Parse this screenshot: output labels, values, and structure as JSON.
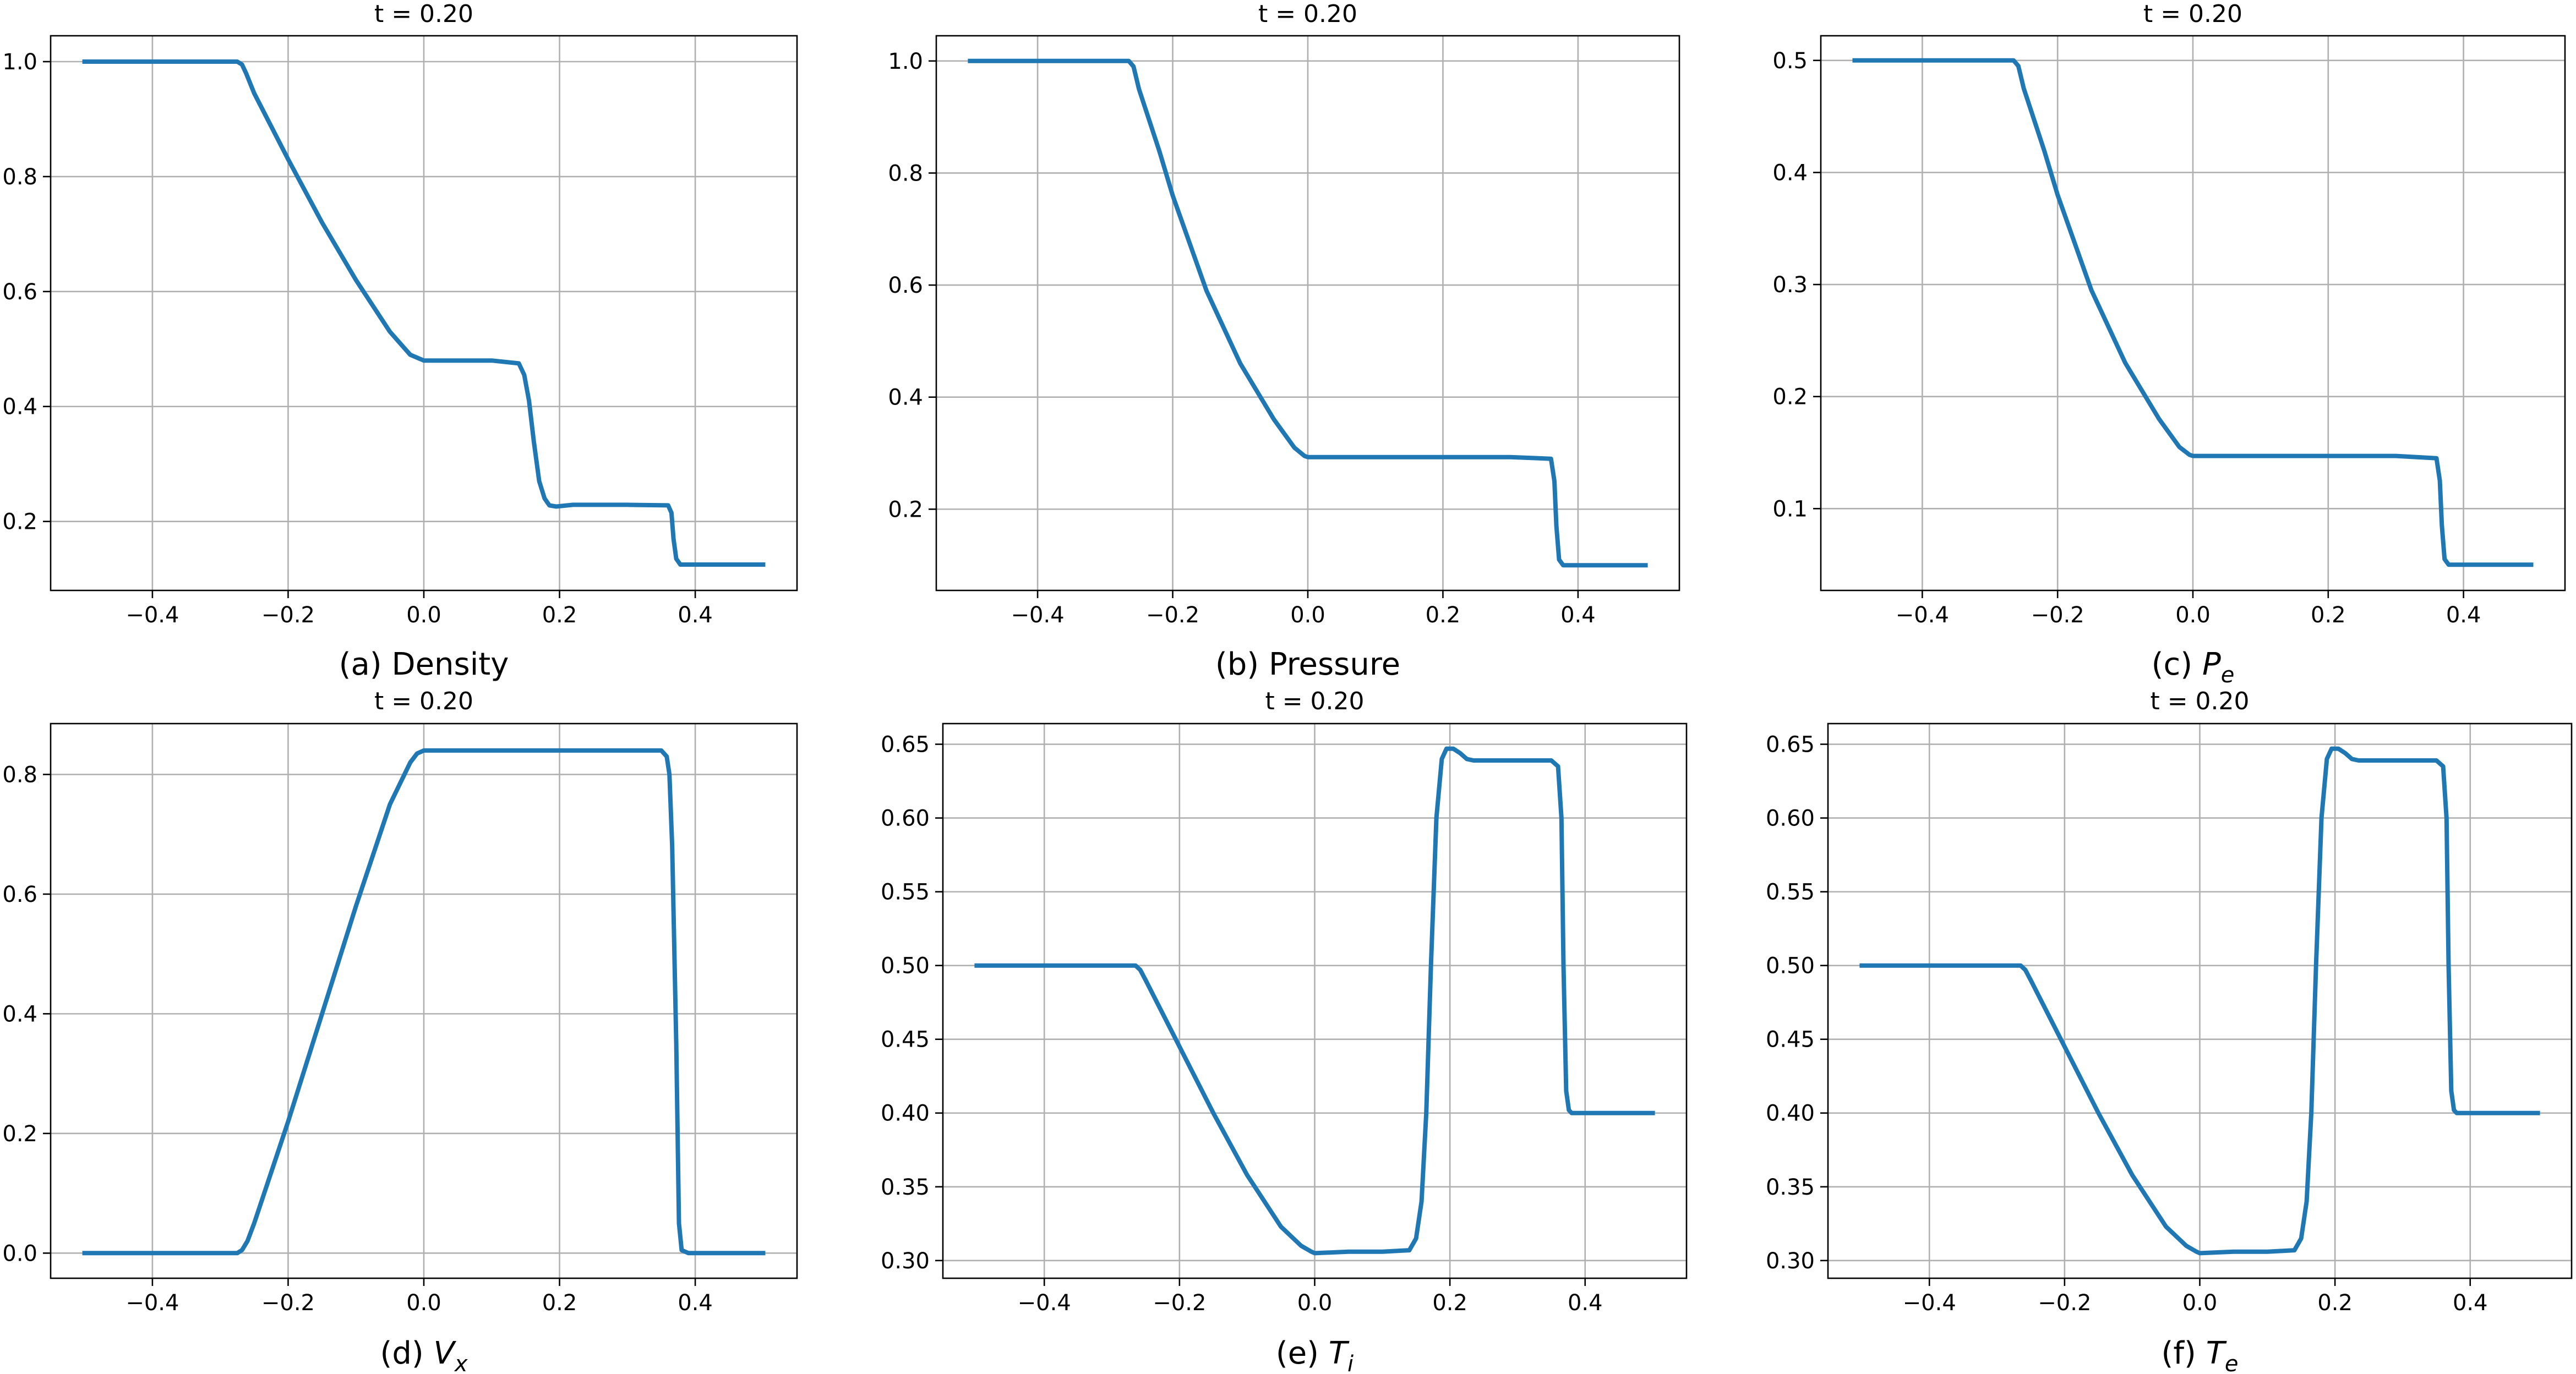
{
  "figure": {
    "line_color": "#1f77b4",
    "grid_color": "#b0b0b0"
  },
  "chart_data": [
    {
      "id": "a",
      "type": "line",
      "title": "t = 0.20",
      "caption_prefix": "(a) ",
      "caption_main": "Density",
      "caption_var": "",
      "caption_sub": "",
      "xlim": [
        -0.55,
        0.55
      ],
      "ylim": [
        0.08,
        1.045
      ],
      "xticks": [
        -0.4,
        -0.2,
        0.0,
        0.2,
        0.4
      ],
      "xtick_labels": [
        "−0.4",
        "−0.2",
        "0.0",
        "0.2",
        "0.4"
      ],
      "yticks": [
        0.2,
        0.4,
        0.6,
        0.8,
        1.0
      ],
      "ytick_labels": [
        "0.2",
        "0.4",
        "0.6",
        "0.8",
        "1.0"
      ],
      "grid": true,
      "series": [
        {
          "x": [
            -0.5,
            -0.275,
            -0.268,
            -0.262,
            -0.25,
            -0.2,
            -0.15,
            -0.1,
            -0.05,
            -0.02,
            0.0,
            0.05,
            0.1,
            0.14,
            0.148,
            0.155,
            0.162,
            0.17,
            0.178,
            0.185,
            0.195,
            0.22,
            0.3,
            0.36,
            0.365,
            0.368,
            0.372,
            0.378,
            0.5
          ],
          "y": [
            1.0,
            1.0,
            0.995,
            0.98,
            0.945,
            0.83,
            0.72,
            0.62,
            0.53,
            0.49,
            0.48,
            0.48,
            0.48,
            0.475,
            0.455,
            0.41,
            0.34,
            0.27,
            0.24,
            0.228,
            0.226,
            0.229,
            0.229,
            0.228,
            0.215,
            0.17,
            0.135,
            0.125,
            0.125
          ]
        }
      ]
    },
    {
      "id": "b",
      "type": "line",
      "title": "t = 0.20",
      "caption_prefix": "(b) ",
      "caption_main": "Pressure",
      "caption_var": "",
      "caption_sub": "",
      "xlim": [
        -0.55,
        0.55
      ],
      "ylim": [
        0.055,
        1.045
      ],
      "xticks": [
        -0.4,
        -0.2,
        0.0,
        0.2,
        0.4
      ],
      "xtick_labels": [
        "−0.4",
        "−0.2",
        "0.0",
        "0.2",
        "0.4"
      ],
      "yticks": [
        0.2,
        0.4,
        0.6,
        0.8,
        1.0
      ],
      "ytick_labels": [
        "0.2",
        "0.4",
        "0.6",
        "0.8",
        "1.0"
      ],
      "grid": true,
      "series": [
        {
          "x": [
            -0.5,
            -0.265,
            -0.258,
            -0.25,
            -0.22,
            -0.2,
            -0.15,
            -0.1,
            -0.05,
            -0.02,
            -0.005,
            0.0,
            0.1,
            0.2,
            0.3,
            0.36,
            0.365,
            0.368,
            0.372,
            0.378,
            0.5
          ],
          "y": [
            1.0,
            1.0,
            0.99,
            0.95,
            0.84,
            0.76,
            0.59,
            0.46,
            0.36,
            0.31,
            0.295,
            0.293,
            0.293,
            0.293,
            0.293,
            0.29,
            0.25,
            0.17,
            0.11,
            0.1,
            0.1
          ]
        }
      ]
    },
    {
      "id": "c",
      "type": "line",
      "title": "t = 0.20",
      "caption_prefix": "(c) ",
      "caption_main": "",
      "caption_var": "P",
      "caption_sub": "e",
      "xlim": [
        -0.55,
        0.55
      ],
      "ylim": [
        0.027,
        0.522
      ],
      "xticks": [
        -0.4,
        -0.2,
        0.0,
        0.2,
        0.4
      ],
      "xtick_labels": [
        "−0.4",
        "−0.2",
        "0.0",
        "0.2",
        "0.4"
      ],
      "yticks": [
        0.1,
        0.2,
        0.3,
        0.4,
        0.5
      ],
      "ytick_labels": [
        "0.1",
        "0.2",
        "0.3",
        "0.4",
        "0.5"
      ],
      "grid": true,
      "series": [
        {
          "x": [
            -0.5,
            -0.265,
            -0.258,
            -0.25,
            -0.22,
            -0.2,
            -0.15,
            -0.1,
            -0.05,
            -0.02,
            -0.005,
            0.0,
            0.1,
            0.2,
            0.3,
            0.36,
            0.365,
            0.368,
            0.372,
            0.378,
            0.5
          ],
          "y": [
            0.5,
            0.5,
            0.495,
            0.475,
            0.42,
            0.38,
            0.295,
            0.23,
            0.18,
            0.155,
            0.148,
            0.147,
            0.147,
            0.147,
            0.147,
            0.145,
            0.125,
            0.085,
            0.055,
            0.05,
            0.05
          ]
        }
      ]
    },
    {
      "id": "d",
      "type": "line",
      "title": "t = 0.20",
      "caption_prefix": "(d) ",
      "caption_main": "",
      "caption_var": "V",
      "caption_sub": "x",
      "xlim": [
        -0.55,
        0.55
      ],
      "ylim": [
        -0.042,
        0.885
      ],
      "xticks": [
        -0.4,
        -0.2,
        0.0,
        0.2,
        0.4
      ],
      "xtick_labels": [
        "−0.4",
        "−0.2",
        "0.0",
        "0.2",
        "0.4"
      ],
      "yticks": [
        0.0,
        0.2,
        0.4,
        0.6,
        0.8
      ],
      "ytick_labels": [
        "0.0",
        "0.2",
        "0.4",
        "0.6",
        "0.8"
      ],
      "grid": true,
      "series": [
        {
          "x": [
            -0.5,
            -0.275,
            -0.268,
            -0.26,
            -0.25,
            -0.2,
            -0.15,
            -0.1,
            -0.05,
            -0.02,
            -0.01,
            0.0,
            0.05,
            0.2,
            0.35,
            0.358,
            0.362,
            0.366,
            0.372,
            0.376,
            0.38,
            0.39,
            0.5
          ],
          "y": [
            0.0,
            0.0,
            0.005,
            0.02,
            0.05,
            0.22,
            0.4,
            0.58,
            0.75,
            0.82,
            0.835,
            0.84,
            0.84,
            0.84,
            0.84,
            0.83,
            0.8,
            0.68,
            0.35,
            0.05,
            0.005,
            0.0,
            0.0
          ]
        }
      ]
    },
    {
      "id": "e",
      "type": "line",
      "title": "t = 0.20",
      "caption_prefix": "(e) ",
      "caption_main": "",
      "caption_var": "T",
      "caption_sub": "i",
      "xlim": [
        -0.55,
        0.55
      ],
      "ylim": [
        0.288,
        0.664
      ],
      "xticks": [
        -0.4,
        -0.2,
        0.0,
        0.2,
        0.4
      ],
      "xtick_labels": [
        "−0.4",
        "−0.2",
        "0.0",
        "0.2",
        "0.4"
      ],
      "yticks": [
        0.3,
        0.35,
        0.4,
        0.45,
        0.5,
        0.55,
        0.6,
        0.65
      ],
      "ytick_labels": [
        "0.30",
        "0.35",
        "0.40",
        "0.45",
        "0.50",
        "0.55",
        "0.60",
        "0.65"
      ],
      "grid": true,
      "series": [
        {
          "x": [
            -0.5,
            -0.265,
            -0.258,
            -0.25,
            -0.2,
            -0.15,
            -0.1,
            -0.05,
            -0.02,
            -0.005,
            0.0,
            0.05,
            0.1,
            0.14,
            0.15,
            0.158,
            0.165,
            0.172,
            0.18,
            0.188,
            0.195,
            0.205,
            0.215,
            0.225,
            0.235,
            0.26,
            0.3,
            0.35,
            0.36,
            0.365,
            0.368,
            0.372,
            0.376,
            0.38,
            0.5
          ],
          "y": [
            0.5,
            0.5,
            0.497,
            0.49,
            0.445,
            0.4,
            0.358,
            0.323,
            0.31,
            0.306,
            0.305,
            0.306,
            0.306,
            0.307,
            0.315,
            0.34,
            0.4,
            0.5,
            0.6,
            0.64,
            0.647,
            0.647,
            0.644,
            0.64,
            0.639,
            0.639,
            0.639,
            0.639,
            0.635,
            0.6,
            0.5,
            0.415,
            0.402,
            0.4,
            0.4
          ]
        }
      ]
    },
    {
      "id": "f",
      "type": "line",
      "title": "t = 0.20",
      "caption_prefix": "(f) ",
      "caption_main": "",
      "caption_var": "T",
      "caption_sub": "e",
      "xlim": [
        -0.55,
        0.55
      ],
      "ylim": [
        0.288,
        0.664
      ],
      "xticks": [
        -0.4,
        -0.2,
        0.0,
        0.2,
        0.4
      ],
      "xtick_labels": [
        "−0.4",
        "−0.2",
        "0.0",
        "0.2",
        "0.4"
      ],
      "yticks": [
        0.3,
        0.35,
        0.4,
        0.45,
        0.5,
        0.55,
        0.6,
        0.65
      ],
      "ytick_labels": [
        "0.30",
        "0.35",
        "0.40",
        "0.45",
        "0.50",
        "0.55",
        "0.60",
        "0.65"
      ],
      "grid": true,
      "series": [
        {
          "x": [
            -0.5,
            -0.265,
            -0.258,
            -0.25,
            -0.2,
            -0.15,
            -0.1,
            -0.05,
            -0.02,
            -0.005,
            0.0,
            0.05,
            0.1,
            0.14,
            0.15,
            0.158,
            0.165,
            0.172,
            0.18,
            0.188,
            0.195,
            0.205,
            0.215,
            0.225,
            0.235,
            0.26,
            0.3,
            0.35,
            0.36,
            0.365,
            0.368,
            0.372,
            0.376,
            0.38,
            0.5
          ],
          "y": [
            0.5,
            0.5,
            0.497,
            0.49,
            0.445,
            0.4,
            0.358,
            0.323,
            0.31,
            0.306,
            0.305,
            0.306,
            0.306,
            0.307,
            0.315,
            0.34,
            0.4,
            0.5,
            0.6,
            0.64,
            0.647,
            0.647,
            0.644,
            0.64,
            0.639,
            0.639,
            0.639,
            0.639,
            0.635,
            0.6,
            0.5,
            0.415,
            0.402,
            0.4,
            0.4
          ]
        }
      ]
    }
  ]
}
